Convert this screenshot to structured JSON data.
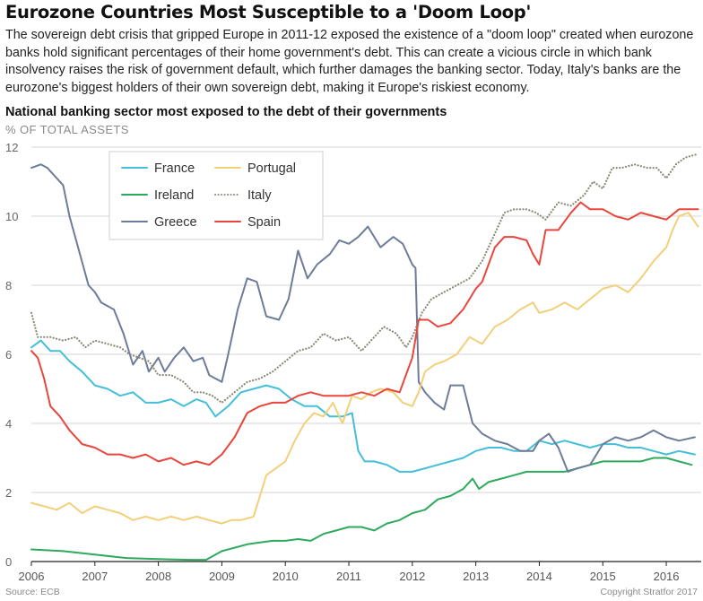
{
  "header": {
    "title": "Eurozone Countries Most Susceptible to a 'Doom Loop'",
    "description": "The sovereign debt crisis that gripped Europe in 2011-12 exposed the existence of a \"doom loop\" created when eurozone banks hold significant percentages of their home government's debt. This can create a vicious circle in which bank insolvency raises the risk of government default, which further damages the banking sector. Today, Italy's banks are the eurozone's biggest holders of their own sovereign debt, making it Europe's riskiest economy.",
    "subtitle": "National banking sector most exposed to the debt of their governments",
    "units": "% OF TOTAL ASSETS"
  },
  "footer": {
    "source": "Source: ECB",
    "copyright": "Copyright Stratfor 2017"
  },
  "chart_data": {
    "type": "line",
    "xlim": [
      2006,
      2016.55
    ],
    "ylim": [
      0,
      12
    ],
    "y_ticks": [
      0,
      2,
      4,
      6,
      8,
      10,
      12
    ],
    "x_ticks": [
      2006,
      2007,
      2008,
      2009,
      2010,
      2011,
      2012,
      2013,
      2014,
      2015,
      2016
    ],
    "x_tick_labels": [
      "2006",
      "2007",
      "2008",
      "2009",
      "2010",
      "2011",
      "2012",
      "2013",
      "2014",
      "2015",
      "2016"
    ],
    "grid": "horizontal",
    "legend_position": "top-left",
    "series": [
      {
        "name": "France",
        "color": "#45bfd9",
        "style": "solid",
        "x": [
          2006.0,
          2006.15,
          2006.3,
          2006.45,
          2006.6,
          2006.8,
          2007.0,
          2007.2,
          2007.4,
          2007.6,
          2007.8,
          2008.0,
          2008.2,
          2008.4,
          2008.6,
          2008.75,
          2008.9,
          2009.1,
          2009.3,
          2009.5,
          2009.7,
          2009.9,
          2010.1,
          2010.3,
          2010.5,
          2010.7,
          2010.9,
          2011.05,
          2011.15,
          2011.25,
          2011.4,
          2011.6,
          2011.8,
          2012.0,
          2012.2,
          2012.4,
          2012.6,
          2012.8,
          2013.0,
          2013.2,
          2013.4,
          2013.6,
          2013.8,
          2014.0,
          2014.2,
          2014.4,
          2014.6,
          2014.8,
          2015.0,
          2015.2,
          2015.4,
          2015.6,
          2015.8,
          2016.0,
          2016.2,
          2016.45
        ],
        "y": [
          6.2,
          6.4,
          6.1,
          6.1,
          5.8,
          5.5,
          5.1,
          5.0,
          4.8,
          4.9,
          4.6,
          4.6,
          4.7,
          4.5,
          4.7,
          4.6,
          4.2,
          4.5,
          4.9,
          5.0,
          5.1,
          5.0,
          4.7,
          4.5,
          4.5,
          4.2,
          4.2,
          4.3,
          3.2,
          2.9,
          2.9,
          2.8,
          2.6,
          2.6,
          2.7,
          2.8,
          2.9,
          3.0,
          3.2,
          3.3,
          3.3,
          3.2,
          3.2,
          3.5,
          3.4,
          3.5,
          3.4,
          3.3,
          3.4,
          3.4,
          3.3,
          3.3,
          3.2,
          3.1,
          3.2,
          3.1
        ]
      },
      {
        "name": "Ireland",
        "color": "#2eaa5c",
        "style": "solid",
        "x": [
          2006.0,
          2006.5,
          2007.0,
          2007.5,
          2008.0,
          2008.5,
          2008.75,
          2008.85,
          2009.0,
          2009.2,
          2009.4,
          2009.6,
          2009.8,
          2010.0,
          2010.2,
          2010.4,
          2010.6,
          2010.8,
          2011.0,
          2011.2,
          2011.4,
          2011.6,
          2011.8,
          2012.0,
          2012.2,
          2012.4,
          2012.6,
          2012.8,
          2012.95,
          2013.05,
          2013.2,
          2013.4,
          2013.6,
          2013.8,
          2014.0,
          2014.2,
          2014.4,
          2014.6,
          2014.8,
          2015.0,
          2015.2,
          2015.4,
          2015.6,
          2015.8,
          2016.0,
          2016.2,
          2016.4
        ],
        "y": [
          0.35,
          0.3,
          0.2,
          0.1,
          0.07,
          0.05,
          0.05,
          0.15,
          0.3,
          0.4,
          0.5,
          0.55,
          0.6,
          0.6,
          0.65,
          0.6,
          0.8,
          0.9,
          1.0,
          1.0,
          0.9,
          1.1,
          1.2,
          1.4,
          1.5,
          1.8,
          1.9,
          2.1,
          2.4,
          2.1,
          2.3,
          2.4,
          2.5,
          2.6,
          2.6,
          2.6,
          2.6,
          2.7,
          2.8,
          2.9,
          2.9,
          2.9,
          2.9,
          3.0,
          3.0,
          2.9,
          2.8
        ]
      },
      {
        "name": "Greece",
        "color": "#6d7c99",
        "style": "solid",
        "x": [
          2006.0,
          2006.15,
          2006.25,
          2006.4,
          2006.5,
          2006.6,
          2006.75,
          2006.9,
          2007.0,
          2007.1,
          2007.3,
          2007.45,
          2007.6,
          2007.75,
          2007.85,
          2008.0,
          2008.1,
          2008.25,
          2008.4,
          2008.55,
          2008.7,
          2008.8,
          2008.9,
          2009.0,
          2009.1,
          2009.25,
          2009.4,
          2009.55,
          2009.7,
          2009.9,
          2010.05,
          2010.2,
          2010.35,
          2010.5,
          2010.7,
          2010.85,
          2011.0,
          2011.15,
          2011.3,
          2011.5,
          2011.7,
          2011.85,
          2012.0,
          2012.05,
          2012.1,
          2012.2,
          2012.35,
          2012.5,
          2012.6,
          2012.8,
          2012.95,
          2013.1,
          2013.3,
          2013.5,
          2013.7,
          2013.9,
          2014.0,
          2014.15,
          2014.3,
          2014.45,
          2014.6,
          2014.8,
          2015.0,
          2015.2,
          2015.4,
          2015.6,
          2015.8,
          2016.0,
          2016.2,
          2016.45
        ],
        "y": [
          11.4,
          11.5,
          11.4,
          11.1,
          10.9,
          10.0,
          9.0,
          8.0,
          7.8,
          7.5,
          7.3,
          6.6,
          5.7,
          6.1,
          5.5,
          5.9,
          5.5,
          5.9,
          6.2,
          5.8,
          5.9,
          5.4,
          5.3,
          5.2,
          6.0,
          7.3,
          8.2,
          8.1,
          7.1,
          7.0,
          7.6,
          9.0,
          8.2,
          8.6,
          8.9,
          9.3,
          9.2,
          9.4,
          9.7,
          9.1,
          9.4,
          9.2,
          8.6,
          8.5,
          5.2,
          4.9,
          4.6,
          4.4,
          5.1,
          5.1,
          4.0,
          3.7,
          3.5,
          3.4,
          3.2,
          3.2,
          3.5,
          3.7,
          3.3,
          2.6,
          2.7,
          2.8,
          3.4,
          3.6,
          3.5,
          3.6,
          3.8,
          3.6,
          3.5,
          3.6
        ]
      },
      {
        "name": "Portugal",
        "color": "#f2d07a",
        "style": "solid",
        "x": [
          2006.0,
          2006.2,
          2006.4,
          2006.6,
          2006.8,
          2007.0,
          2007.2,
          2007.4,
          2007.6,
          2007.8,
          2008.0,
          2008.2,
          2008.4,
          2008.6,
          2008.8,
          2009.0,
          2009.15,
          2009.3,
          2009.5,
          2009.7,
          2009.85,
          2010.0,
          2010.15,
          2010.3,
          2010.45,
          2010.6,
          2010.75,
          2010.9,
          2011.05,
          2011.2,
          2011.35,
          2011.5,
          2011.7,
          2011.85,
          2012.0,
          2012.1,
          2012.2,
          2012.35,
          2012.5,
          2012.7,
          2012.9,
          2013.1,
          2013.3,
          2013.5,
          2013.7,
          2013.9,
          2014.0,
          2014.2,
          2014.4,
          2014.6,
          2014.8,
          2015.0,
          2015.2,
          2015.4,
          2015.6,
          2015.8,
          2016.0,
          2016.1,
          2016.2,
          2016.35,
          2016.5
        ],
        "y": [
          1.7,
          1.6,
          1.5,
          1.7,
          1.4,
          1.6,
          1.5,
          1.4,
          1.2,
          1.3,
          1.2,
          1.3,
          1.2,
          1.3,
          1.2,
          1.1,
          1.2,
          1.2,
          1.3,
          2.5,
          2.7,
          2.9,
          3.5,
          4.0,
          4.3,
          4.2,
          4.6,
          4.0,
          4.8,
          4.7,
          4.9,
          5.0,
          4.9,
          4.6,
          4.5,
          4.9,
          5.5,
          5.7,
          5.8,
          6.0,
          6.5,
          6.3,
          6.8,
          7.0,
          7.3,
          7.5,
          7.2,
          7.3,
          7.5,
          7.3,
          7.6,
          7.9,
          8.0,
          7.8,
          8.2,
          8.7,
          9.1,
          9.6,
          10.0,
          10.1,
          9.7
        ]
      },
      {
        "name": "Italy",
        "color": "#8a8a78",
        "style": "dotted",
        "x": [
          2006.0,
          2006.1,
          2006.3,
          2006.5,
          2006.7,
          2006.85,
          2007.0,
          2007.2,
          2007.4,
          2007.55,
          2007.7,
          2007.85,
          2008.0,
          2008.2,
          2008.4,
          2008.55,
          2008.7,
          2008.85,
          2009.0,
          2009.2,
          2009.4,
          2009.6,
          2009.8,
          2010.0,
          2010.2,
          2010.4,
          2010.6,
          2010.8,
          2011.0,
          2011.2,
          2011.35,
          2011.55,
          2011.75,
          2011.9,
          2012.0,
          2012.15,
          2012.3,
          2012.5,
          2012.7,
          2012.9,
          2013.1,
          2013.3,
          2013.45,
          2013.6,
          2013.8,
          2013.95,
          2014.1,
          2014.3,
          2014.5,
          2014.7,
          2014.85,
          2015.0,
          2015.15,
          2015.3,
          2015.5,
          2015.7,
          2015.85,
          2016.0,
          2016.15,
          2016.3,
          2016.5
        ],
        "y": [
          7.2,
          6.5,
          6.5,
          6.4,
          6.5,
          6.2,
          6.4,
          6.3,
          6.2,
          6.0,
          5.9,
          5.8,
          5.4,
          5.4,
          5.2,
          4.9,
          4.9,
          4.8,
          4.6,
          4.9,
          5.2,
          5.3,
          5.5,
          5.8,
          6.1,
          6.2,
          6.6,
          6.4,
          6.5,
          6.1,
          6.4,
          6.8,
          6.6,
          6.2,
          6.5,
          7.2,
          7.6,
          7.8,
          8.0,
          8.2,
          8.7,
          9.5,
          10.1,
          10.2,
          10.2,
          10.1,
          9.9,
          10.4,
          10.3,
          10.6,
          11.0,
          10.8,
          11.4,
          11.4,
          11.5,
          11.4,
          11.4,
          11.1,
          11.5,
          11.7,
          11.8
        ]
      },
      {
        "name": "Spain",
        "color": "#e8463c",
        "style": "solid",
        "x": [
          2006.0,
          2006.1,
          2006.2,
          2006.3,
          2006.45,
          2006.6,
          2006.8,
          2007.0,
          2007.2,
          2007.4,
          2007.6,
          2007.8,
          2008.0,
          2008.2,
          2008.4,
          2008.6,
          2008.8,
          2009.0,
          2009.2,
          2009.4,
          2009.6,
          2009.8,
          2010.0,
          2010.2,
          2010.4,
          2010.6,
          2010.8,
          2011.0,
          2011.2,
          2011.4,
          2011.6,
          2011.8,
          2012.0,
          2012.1,
          2012.25,
          2012.4,
          2012.6,
          2012.8,
          2013.0,
          2013.1,
          2013.3,
          2013.45,
          2013.6,
          2013.8,
          2013.9,
          2014.0,
          2014.1,
          2014.3,
          2014.5,
          2014.65,
          2014.8,
          2015.0,
          2015.2,
          2015.4,
          2015.6,
          2015.8,
          2016.0,
          2016.2,
          2016.35,
          2016.5
        ],
        "y": [
          6.1,
          5.9,
          5.3,
          4.5,
          4.2,
          3.8,
          3.4,
          3.3,
          3.1,
          3.1,
          3.0,
          3.1,
          2.9,
          3.0,
          2.8,
          2.9,
          2.8,
          3.1,
          3.6,
          4.3,
          4.5,
          4.6,
          4.6,
          4.8,
          4.9,
          4.8,
          4.8,
          4.8,
          4.9,
          4.8,
          5.0,
          4.9,
          5.9,
          7.0,
          7.0,
          6.8,
          6.9,
          7.3,
          7.9,
          8.1,
          9.1,
          9.4,
          9.4,
          9.3,
          8.9,
          8.6,
          9.6,
          9.6,
          10.1,
          10.4,
          10.2,
          10.2,
          10.0,
          9.9,
          10.1,
          10.0,
          9.9,
          10.2,
          10.2,
          10.2
        ]
      }
    ]
  }
}
